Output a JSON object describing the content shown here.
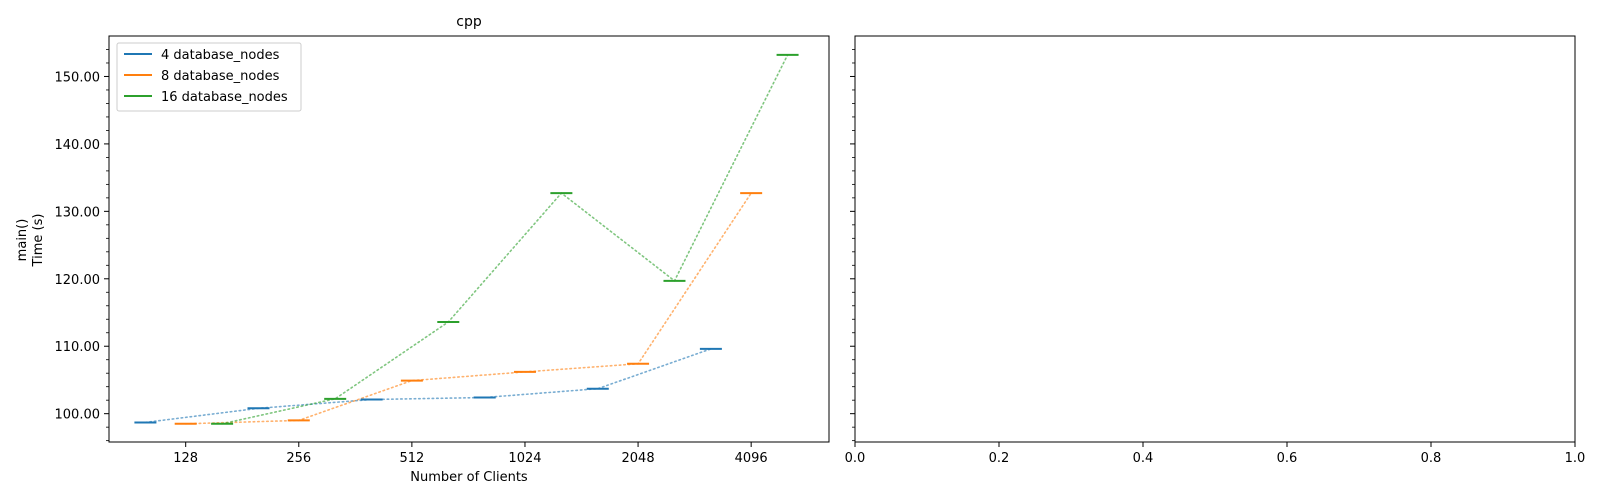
{
  "chart_data": [
    {
      "type": "line",
      "title": "cpp",
      "xlabel": "Number of Clients",
      "ylabel_lines": [
        "main()",
        "Time (s)"
      ],
      "x_scale": "log2",
      "x_ticks": [
        128,
        256,
        512,
        1024,
        2048,
        4096
      ],
      "x_tick_labels": [
        "128",
        "256",
        "512",
        "1024",
        "2048",
        "4096"
      ],
      "xlim": [
        80,
        6600
      ],
      "ylim": [
        95.8,
        156.0
      ],
      "y_ticks": [
        100,
        110,
        120,
        130,
        140,
        150
      ],
      "y_tick_labels": [
        "100.00",
        "110.00",
        "120.00",
        "130.00",
        "140.00",
        "150.00"
      ],
      "grid": false,
      "legend_position": "top-left",
      "marker": "horizontal-dash",
      "line_style": "dotted",
      "series": [
        {
          "name": "4 database_nodes",
          "color": "#1f77b4",
          "x": [
            100,
            200,
            400,
            800,
            1600,
            3200
          ],
          "y": [
            98.7,
            100.8,
            102.1,
            102.4,
            103.7,
            109.6
          ]
        },
        {
          "name": "8 database_nodes",
          "color": "#ff7f0e",
          "x": [
            128,
            256,
            512,
            1024,
            2048,
            4096
          ],
          "y": [
            98.5,
            99.0,
            104.9,
            106.2,
            107.4,
            132.7
          ]
        },
        {
          "name": "16 database_nodes",
          "color": "#2ca02c",
          "x": [
            160,
            320,
            640,
            1280,
            2560,
            5120
          ],
          "y": [
            98.5,
            102.2,
            113.6,
            132.7,
            119.7,
            153.2
          ]
        }
      ]
    },
    {
      "type": "line",
      "title": "",
      "xlabel": "",
      "xlim": [
        0.0,
        1.0
      ],
      "x_ticks": [
        0.0,
        0.2,
        0.4,
        0.6,
        0.8,
        1.0
      ],
      "x_tick_labels": [
        "0.0",
        "0.2",
        "0.4",
        "0.6",
        "0.8",
        "1.0"
      ],
      "shared_y": true,
      "series": []
    }
  ]
}
